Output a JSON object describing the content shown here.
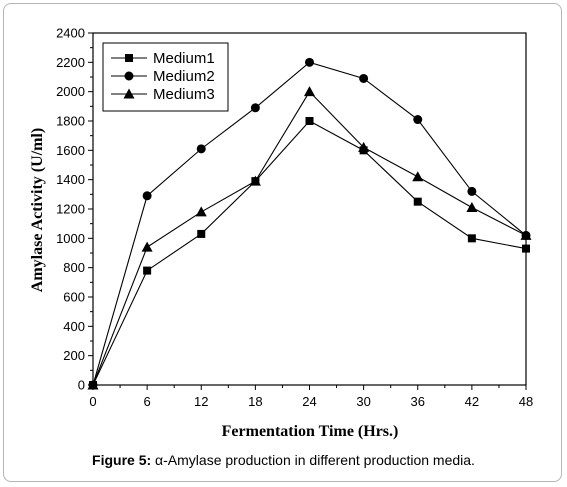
{
  "chart_data": {
    "type": "line",
    "xlabel": "Fermentation Time (Hrs.)",
    "ylabel": "Amylase Activity (U/ml)",
    "x": [
      0,
      6,
      12,
      18,
      24,
      30,
      36,
      42,
      48
    ],
    "xlim": [
      0,
      48
    ],
    "ylim": [
      0,
      2400
    ],
    "xticks": [
      0,
      6,
      12,
      18,
      24,
      30,
      36,
      42,
      48
    ],
    "yticks": [
      0,
      200,
      400,
      600,
      800,
      1000,
      1200,
      1400,
      1600,
      1800,
      2000,
      2200,
      2400
    ],
    "grid": false,
    "legend_position": "top-left",
    "series": [
      {
        "name": "Medium1",
        "marker": "square",
        "values": [
          0,
          780,
          1030,
          1390,
          1800,
          1600,
          1250,
          1000,
          930
        ]
      },
      {
        "name": "Medium2",
        "marker": "circle",
        "values": [
          0,
          1290,
          1610,
          1890,
          2200,
          2090,
          1810,
          1320,
          1020
        ]
      },
      {
        "name": "Medium3",
        "marker": "triangle",
        "values": [
          0,
          940,
          1180,
          1390,
          2000,
          1620,
          1420,
          1210,
          1020
        ]
      }
    ]
  },
  "caption": {
    "label": "Figure 5:",
    "text": " α-Amylase production in different production media."
  }
}
